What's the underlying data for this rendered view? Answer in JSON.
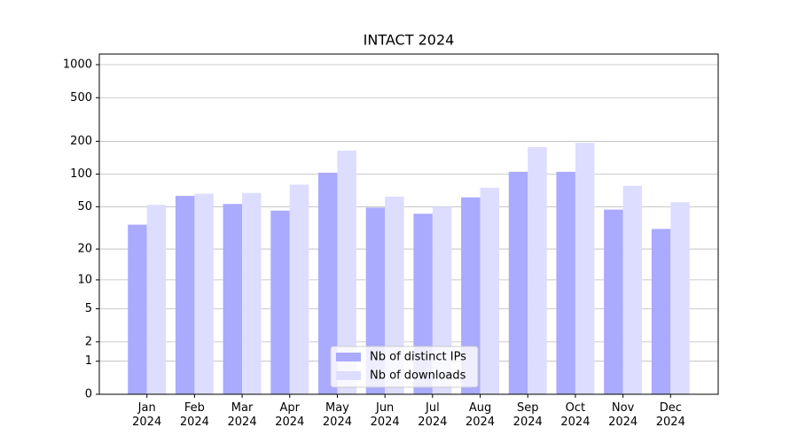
{
  "chart_data": {
    "type": "bar",
    "title": "INTACT 2024",
    "categories": [
      "Jan\n2024",
      "Feb\n2024",
      "Mar\n2024",
      "Apr\n2024",
      "May\n2024",
      "Jun\n2024",
      "Jul\n2024",
      "Aug\n2024",
      "Sep\n2024",
      "Oct\n2024",
      "Nov\n2024",
      "Dec\n2024"
    ],
    "series": [
      {
        "name": "Nb of distinct IPs",
        "color": "#aaaaff",
        "values": [
          34,
          63,
          53,
          46,
          103,
          49,
          43,
          61,
          105,
          105,
          47,
          31
        ]
      },
      {
        "name": "Nb of downloads",
        "color": "#ddddff",
        "values": [
          52,
          66,
          67,
          80,
          164,
          62,
          50,
          75,
          177,
          194,
          78,
          55
        ]
      }
    ],
    "ylim": [
      0,
      1250
    ],
    "yticks": [
      0,
      1,
      2,
      5,
      10,
      20,
      50,
      100,
      200,
      500,
      1000
    ],
    "scale": "log1p",
    "grid": true,
    "legend": "lower center"
  }
}
